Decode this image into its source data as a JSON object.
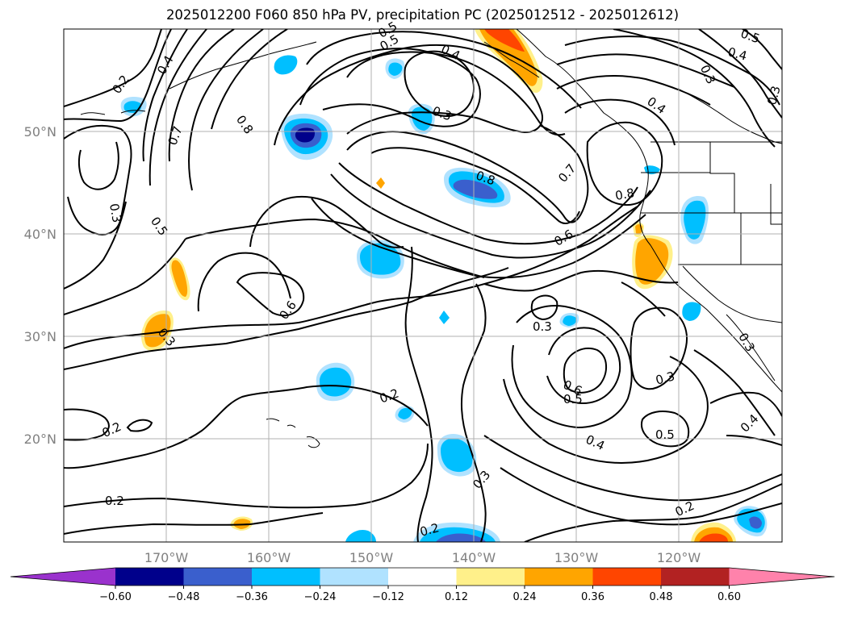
{
  "title": "2025012200 F060 850 hPa PV, precipitation PC (2025012512 - 2025012612)",
  "map": {
    "lat_ticks": [
      "50°N",
      "40°N",
      "30°N",
      "20°N"
    ],
    "lon_ticks": [
      "170°W",
      "160°W",
      "150°W",
      "140°W",
      "130°W",
      "120°W"
    ],
    "contour_labels": [
      "0.2",
      "0.4",
      "0.5",
      "0.4",
      "0.3",
      "0.3",
      "0.4",
      "0.5",
      "0.4",
      "0.7",
      "0.8",
      "0.3",
      "0.8",
      "0.8",
      "0.7",
      "0.3",
      "0.5",
      "0.6",
      "0.6",
      "0.3",
      "0.3",
      "0.3",
      "0.6",
      "0.5",
      "0.2",
      "0.2",
      "0.4",
      "0.5",
      "0.4",
      "0.3",
      "0.2",
      "0.3",
      "0.2",
      "0.2",
      "0.5"
    ]
  },
  "colorbar": {
    "ticks": [
      "−0.60",
      "−0.48",
      "−0.36",
      "−0.24",
      "−0.12",
      "0.12",
      "0.24",
      "0.36",
      "0.48",
      "0.60"
    ],
    "colors": [
      "#9a32cd",
      "#00008b",
      "#3a5fcd",
      "#00bfff",
      "#b0e2ff",
      "#ffffff",
      "#fff08a",
      "#ffa500",
      "#ff4500",
      "#b22222",
      "#ff82ab"
    ]
  },
  "chart_data": {
    "type": "heatmap",
    "title": "2025012200 F060 850 hPa PV, precipitation PC (2025012512 - 2025012612)",
    "x_ticks": [
      "170°W",
      "160°W",
      "150°W",
      "140°W",
      "130°W",
      "120°W"
    ],
    "y_ticks": [
      "50°N",
      "40°N",
      "30°N",
      "20°N"
    ],
    "colorbar_levels": [
      -0.6,
      -0.48,
      -0.36,
      -0.24,
      -0.12,
      0.12,
      0.24,
      0.36,
      0.48,
      0.6
    ],
    "contour_levels": [
      0.2,
      0.3,
      0.4,
      0.5,
      0.6,
      0.7,
      0.8
    ],
    "grid": true
  }
}
